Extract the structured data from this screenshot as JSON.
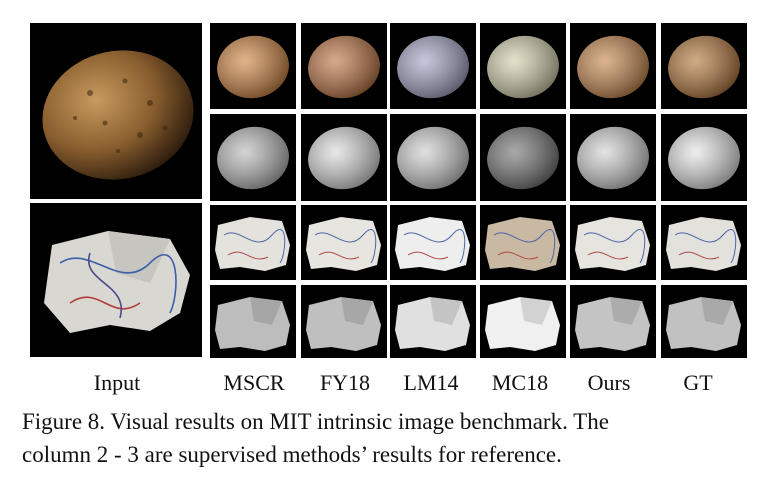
{
  "columns": [
    "Input",
    "MSCR",
    "FY18",
    "LM14",
    "MC18",
    "Ours",
    "GT"
  ],
  "rows": [
    {
      "subject": "potato",
      "output": "albedo"
    },
    {
      "subject": "potato",
      "output": "shading"
    },
    {
      "subject": "paper",
      "output": "albedo"
    },
    {
      "subject": "paper",
      "output": "shading"
    }
  ],
  "caption": {
    "line1": "Figure 8. Visual results on MIT intrinsic image benchmark.  The",
    "line2": "column 2 - 3 are supervised methods’ results for reference."
  }
}
